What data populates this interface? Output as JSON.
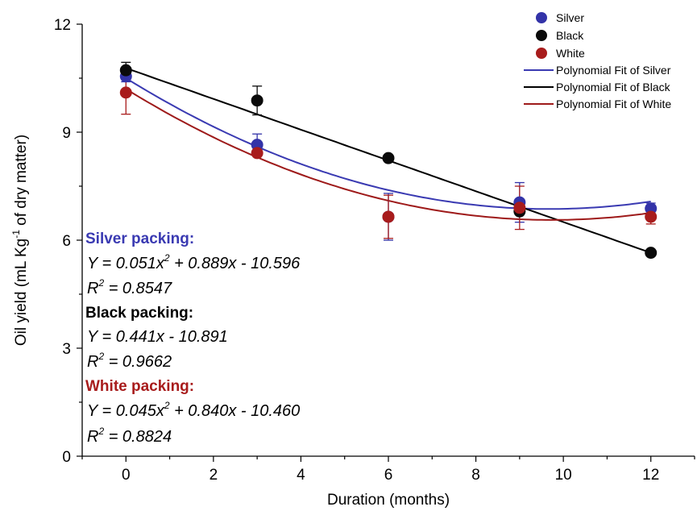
{
  "chart_data": {
    "type": "scatter",
    "xlabel": "Duration (months)",
    "ylabel": {
      "pre": "Oil yield (mL Kg",
      "sup": "-1",
      "post": " of dry matter)"
    },
    "xlim": [
      -1,
      13
    ],
    "ylim": [
      0,
      12
    ],
    "xticks": [
      0,
      2,
      4,
      6,
      8,
      10,
      12
    ],
    "yticks": [
      0,
      3,
      6,
      9,
      12
    ],
    "grid": false,
    "legend_position": "top-right",
    "series": [
      {
        "name": "Silver",
        "color": "#3333a8",
        "x": [
          0,
          3,
          6,
          9,
          12
        ],
        "y": [
          10.55,
          8.65,
          6.65,
          7.05,
          6.88
        ],
        "err": [
          0.15,
          0.3,
          0.65,
          0.55,
          0.15
        ]
      },
      {
        "name": "Black",
        "color": "#0a0a0a",
        "x": [
          0,
          3,
          6,
          9,
          12
        ],
        "y": [
          10.72,
          9.88,
          8.28,
          6.8,
          5.65
        ],
        "err": [
          0.22,
          0.4,
          0.0,
          0.0,
          0.0
        ]
      },
      {
        "name": "White",
        "color": "#a81c1c",
        "x": [
          0,
          3,
          6,
          9,
          12
        ],
        "y": [
          10.1,
          8.42,
          6.65,
          6.9,
          6.65
        ],
        "err": [
          0.6,
          0.0,
          0.6,
          0.6,
          0.2
        ]
      }
    ],
    "fits": [
      {
        "name": "Polynomial Fit of Silver",
        "color": "#3a3ab2",
        "coeffs": [
          10.5,
          -0.751,
          0.0388
        ]
      },
      {
        "name": "Polynomial Fit of Black",
        "color": "#000000",
        "coeffs": [
          10.78,
          -0.4275,
          0.0
        ]
      },
      {
        "name": "Polynomial Fit of White",
        "color": "#9e1a1a",
        "coeffs": [
          10.2,
          -0.7475,
          0.0384
        ]
      }
    ],
    "annotations": [
      {
        "heading": "Silver packing:",
        "color": "#3a3ab2",
        "eq": {
          "a": "Y = 0.051x",
          "b": " + 0.889x - 10.596"
        },
        "r2": " = 0.8547"
      },
      {
        "heading": "Black packing:",
        "color": "#000000",
        "eq": {
          "a": "Y = 0.441x - 10.891",
          "b": ""
        },
        "r2": " = 0.9662"
      },
      {
        "heading": "White packing:",
        "color": "#a81c1c",
        "eq": {
          "a": "Y = 0.045x",
          "b": " + 0.840x - 10.460"
        },
        "r2": " = 0.8824"
      }
    ]
  }
}
